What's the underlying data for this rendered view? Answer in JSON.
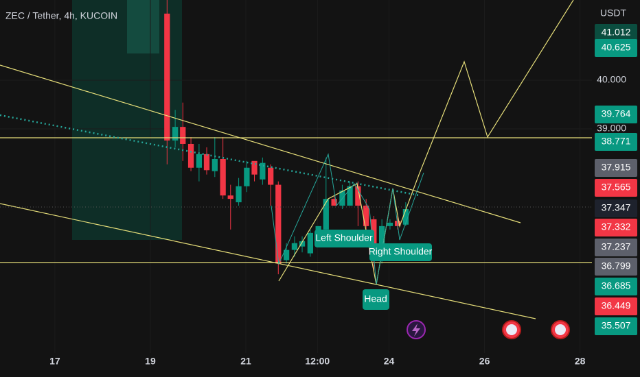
{
  "chart_data": {
    "type": "candlestick",
    "title": "ZEC / Tether, 4h, KUCOIN",
    "currency": "USDT",
    "x": [
      19.35,
      19.52,
      19.68,
      19.85,
      20.02,
      20.18,
      20.35,
      20.52,
      20.68,
      20.85,
      21.02,
      21.18,
      21.35,
      21.52,
      21.68,
      21.85,
      22.02,
      22.18,
      22.35,
      22.52,
      22.68,
      22.85,
      23.02,
      23.18,
      23.35,
      23.52,
      23.68,
      23.85,
      24.02,
      24.18,
      24.35
    ],
    "open": [
      41.37,
      38.76,
      39.04,
      38.69,
      38.2,
      38.48,
      38.13,
      38.38,
      37.63,
      37.49,
      37.82,
      38.34,
      37.96,
      38.2,
      37.85,
      36.3,
      36.51,
      36.58,
      36.44,
      36.86,
      36.93,
      37.56,
      37.42,
      37.42,
      37.82,
      37.42,
      37.14,
      36.3,
      37.0,
      37.11,
      37.03
    ],
    "close": [
      38.76,
      39.04,
      38.69,
      38.2,
      38.48,
      38.15,
      38.38,
      37.63,
      37.56,
      37.82,
      38.2,
      38.06,
      38.3,
      37.85,
      36.23,
      36.51,
      36.65,
      36.69,
      36.86,
      37.0,
      37.56,
      37.42,
      37.73,
      37.82,
      37.42,
      37.0,
      36.3,
      37.0,
      37.07,
      37.0,
      37.35
    ],
    "high": [
      41.65,
      39.39,
      39.54,
      38.83,
      38.69,
      38.62,
      38.83,
      38.83,
      37.85,
      37.99,
      38.34,
      38.3,
      38.41,
      38.27,
      37.92,
      36.65,
      36.79,
      36.79,
      36.93,
      37.0,
      38.41,
      37.63,
      37.85,
      37.92,
      37.92,
      37.56,
      37.21,
      37.14,
      37.14,
      37.21,
      37.49
    ],
    "low": [
      38.27,
      38.62,
      38.34,
      38.13,
      37.92,
      38.06,
      38.01,
      37.56,
      36.93,
      37.42,
      37.7,
      37.92,
      37.85,
      37.42,
      36.01,
      36.23,
      36.37,
      36.46,
      36.37,
      36.79,
      36.86,
      37.42,
      37.35,
      37.42,
      37.0,
      36.79,
      36.08,
      36.23,
      36.93,
      36.93,
      37.0
    ],
    "up_color": "#089981",
    "down_color": "#f23645",
    "xlim": [
      15.85,
      28.25
    ],
    "xticks": [
      17,
      19,
      21,
      {
        "value": 22.5,
        "label": "12:00"
      },
      24,
      26,
      28
    ],
    "ylim": [
      34.39,
      41.65
    ],
    "yticks": [
      {
        "value": 40,
        "label": "40.000"
      },
      {
        "value": 39,
        "label": "39.000"
      }
    ],
    "price_labels": {
      "values": [
        41.012,
        40.625,
        39.764,
        38.771,
        37.915,
        37.565,
        37.347,
        37.332,
        37.237,
        36.799,
        36.685,
        36.449,
        35.507
      ],
      "colors": [
        "#0b4d3f",
        "#089981",
        "#089981",
        "#089981",
        "#5d606b",
        "#f23645",
        "#1e222d",
        "#f23645",
        "#5d606b",
        "#5d606b",
        "#089981",
        "#f23645",
        "#089981"
      ]
    },
    "annotations": [
      "Left Shoulder",
      "Right Shoulder",
      "Head"
    ]
  }
}
